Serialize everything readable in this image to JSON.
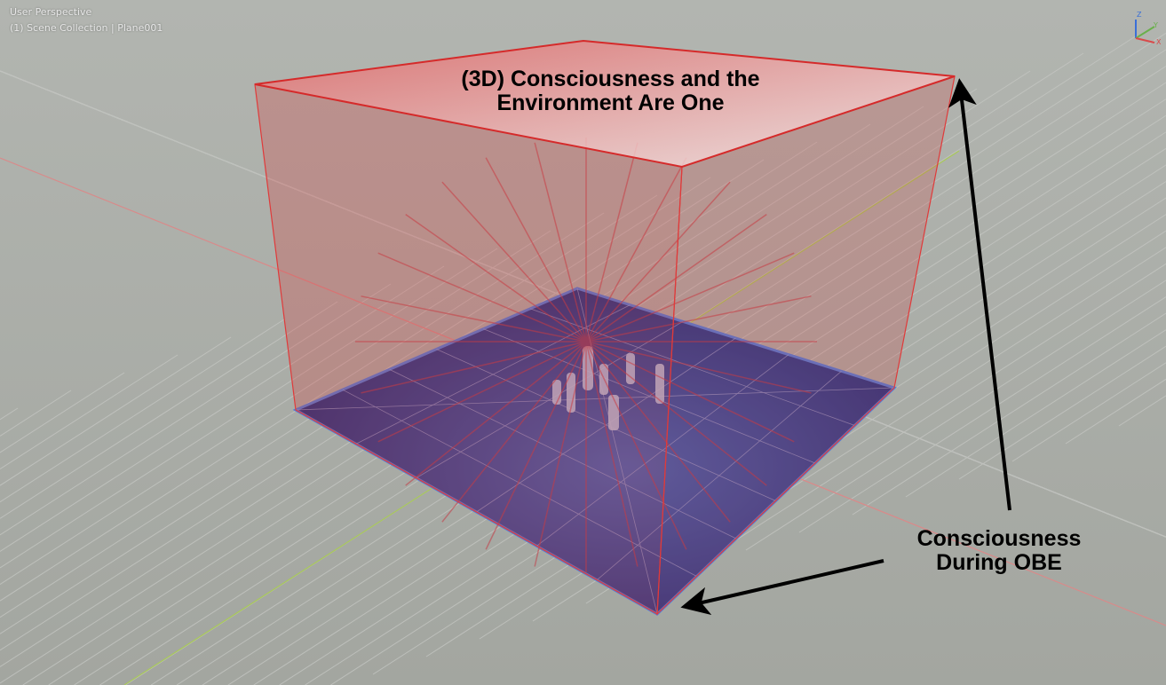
{
  "viewport": {
    "view_name": "User Perspective",
    "collection_info": "(1) Scene Collection | Plane001"
  },
  "gizmo": {
    "z": "Z",
    "y": "Y",
    "x": "X",
    "z_color": "#3a6fd8",
    "y_color": "#6ab04c",
    "x_color": "#d94a4a"
  },
  "annotations": {
    "top_label": [
      "(3D) Consciousness and the",
      "Environment Are One"
    ],
    "bottom_label": [
      "Consciousness",
      "During OBE"
    ]
  },
  "colors": {
    "box": "#d93a3a",
    "floor": "#1f3a8f",
    "grid_bg": "#a9aca7"
  }
}
